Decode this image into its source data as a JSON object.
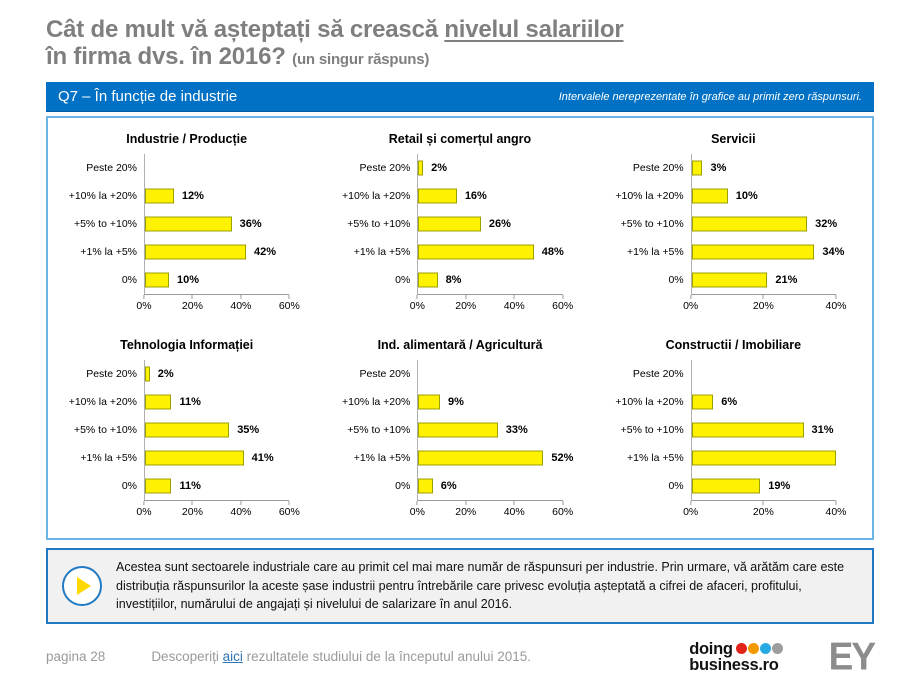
{
  "header": {
    "title_line1_pre": "Cât de mult vă așteptați să crească ",
    "title_line1_underlined": "nivelul salariilor",
    "title_line2": "în firma dvs. în 2016? ",
    "title_suffix": "(un singur răspuns)"
  },
  "banner": {
    "left": "Q7 – În funcție de industrie",
    "right": "Intervalele nereprezentate în grafice au primit zero răspunsuri."
  },
  "chart_data": [
    {
      "type": "bar",
      "title": "Industrie / Producție",
      "xlabel": "",
      "ylabel": "",
      "xmax": 60,
      "ticks": [
        {
          "label": "0%",
          "value": 0
        },
        {
          "label": "20%",
          "value": 20
        },
        {
          "label": "40%",
          "value": 40
        },
        {
          "label": "60%",
          "value": 60
        }
      ],
      "rows": [
        {
          "label": "Peste 20%",
          "value": 0,
          "display": ""
        },
        {
          "label": "+10% la +20%",
          "value": 12,
          "display": "12%"
        },
        {
          "label": "+5% to +10%",
          "value": 36,
          "display": "36%"
        },
        {
          "label": "+1% la +5%",
          "value": 42,
          "display": "42%"
        },
        {
          "label": "0%",
          "value": 10,
          "display": "10%"
        }
      ]
    },
    {
      "type": "bar",
      "title": "Retail și comerțul angro",
      "xlabel": "",
      "ylabel": "",
      "xmax": 60,
      "ticks": [
        {
          "label": "0%",
          "value": 0
        },
        {
          "label": "20%",
          "value": 20
        },
        {
          "label": "40%",
          "value": 40
        },
        {
          "label": "60%",
          "value": 60
        }
      ],
      "rows": [
        {
          "label": "Peste 20%",
          "value": 2,
          "display": "2%"
        },
        {
          "label": "+10% la +20%",
          "value": 16,
          "display": "16%"
        },
        {
          "label": "+5% to +10%",
          "value": 26,
          "display": "26%"
        },
        {
          "label": "+1% la +5%",
          "value": 48,
          "display": "48%"
        },
        {
          "label": "0%",
          "value": 8,
          "display": "8%"
        }
      ]
    },
    {
      "type": "bar",
      "title": "Servicii",
      "xlabel": "",
      "ylabel": "",
      "xmax": 40,
      "ticks": [
        {
          "label": "0%",
          "value": 0
        },
        {
          "label": "20%",
          "value": 20
        },
        {
          "label": "40%",
          "value": 40
        }
      ],
      "rows": [
        {
          "label": "Peste 20%",
          "value": 3,
          "display": "3%"
        },
        {
          "label": "+10% la +20%",
          "value": 10,
          "display": "10%"
        },
        {
          "label": "+5% to +10%",
          "value": 32,
          "display": "32%"
        },
        {
          "label": "+1% la +5%",
          "value": 34,
          "display": "34%"
        },
        {
          "label": "0%",
          "value": 21,
          "display": "21%"
        }
      ]
    },
    {
      "type": "bar",
      "title": "Tehnologia Informației",
      "xlabel": "",
      "ylabel": "",
      "xmax": 60,
      "ticks": [
        {
          "label": "0%",
          "value": 0
        },
        {
          "label": "20%",
          "value": 20
        },
        {
          "label": "40%",
          "value": 40
        },
        {
          "label": "60%",
          "value": 60
        }
      ],
      "rows": [
        {
          "label": "Peste 20%",
          "value": 2,
          "display": "2%"
        },
        {
          "label": "+10% la +20%",
          "value": 11,
          "display": "11%"
        },
        {
          "label": "+5% to +10%",
          "value": 35,
          "display": "35%"
        },
        {
          "label": "+1% la +5%",
          "value": 41,
          "display": "41%"
        },
        {
          "label": "0%",
          "value": 11,
          "display": "11%"
        }
      ]
    },
    {
      "type": "bar",
      "title": "Ind. alimentară / Agricultură",
      "xlabel": "",
      "ylabel": "",
      "xmax": 60,
      "ticks": [
        {
          "label": "0%",
          "value": 0
        },
        {
          "label": "20%",
          "value": 20
        },
        {
          "label": "40%",
          "value": 40
        },
        {
          "label": "60%",
          "value": 60
        }
      ],
      "rows": [
        {
          "label": "Peste 20%",
          "value": 0,
          "display": ""
        },
        {
          "label": "+10% la +20%",
          "value": 9,
          "display": "9%"
        },
        {
          "label": "+5% to +10%",
          "value": 33,
          "display": "33%"
        },
        {
          "label": "+1% la +5%",
          "value": 52,
          "display": "52%"
        },
        {
          "label": "0%",
          "value": 6,
          "display": "6%"
        }
      ]
    },
    {
      "type": "bar",
      "title": "Constructii / Imobiliare",
      "xlabel": "",
      "ylabel": "",
      "xmax": 40,
      "ticks": [
        {
          "label": "0%",
          "value": 0
        },
        {
          "label": "20%",
          "value": 20
        },
        {
          "label": "40%",
          "value": 40
        }
      ],
      "rows": [
        {
          "label": "Peste 20%",
          "value": 0,
          "display": ""
        },
        {
          "label": "+10% la +20%",
          "value": 6,
          "display": "6%"
        },
        {
          "label": "+5% to +10%",
          "value": 31,
          "display": "31%"
        },
        {
          "label": "+1% la +5%",
          "value": 44,
          "display": "",
          "clipped": true
        },
        {
          "label": "0%",
          "value": 19,
          "display": "19%"
        }
      ]
    }
  ],
  "note": {
    "text": "Acestea sunt sectoarele industriale care au primit cel mai mare număr de răspunsuri per industrie. Prin urmare, vă arătăm care este distribuția răspunsurilor la aceste șase industrii pentru întrebările care privesc evoluția așteptată a cifrei de afaceri, profitului, investițiilor, numărului de angajați și nivelului de salarizare în anul 2016."
  },
  "footer": {
    "page": "pagina 28",
    "sentence_pre": "Descoperiți ",
    "link": "aici",
    "sentence_post": " rezultatele studiului de la începutul anului 2015.",
    "logo_doing_line1": "doing",
    "logo_doing_line2": "business.ro",
    "logo_dot_colors": [
      "#E2231A",
      "#F49800",
      "#27AAE1",
      "#9D9D9C"
    ],
    "logo_ey": "EY"
  },
  "colors": {
    "banner_blue": "#0071C5",
    "charts_box_border": "#6AB5E6",
    "note_border": "#2079C3",
    "bar_fill": "#FFF200",
    "bar_border": "#9AA000",
    "title_gray": "#7F7F7F"
  }
}
